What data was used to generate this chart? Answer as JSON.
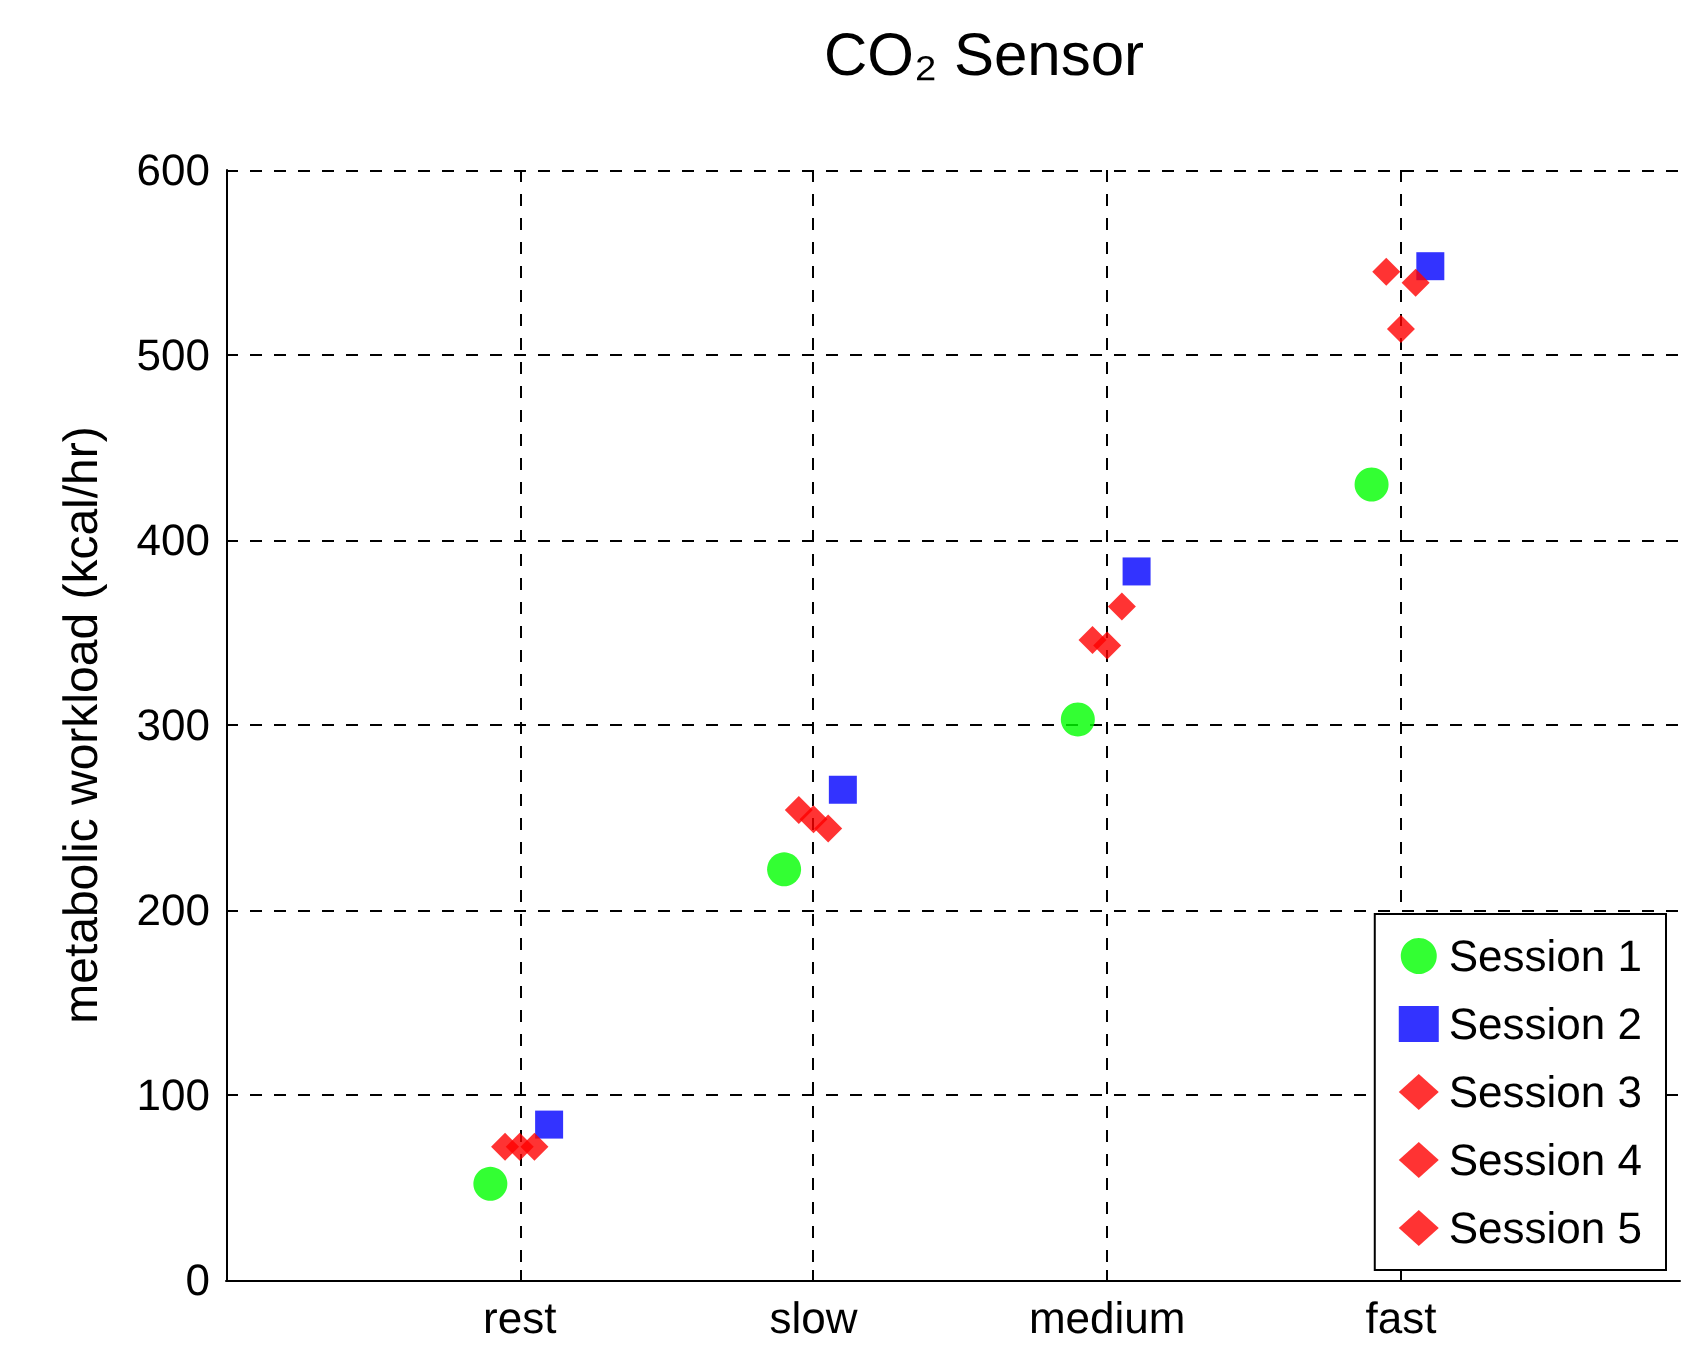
{
  "chart_data": {
    "type": "scatter",
    "title": "CO₂ Sensor",
    "ylabel": "metabolic workload (kcal/hr)",
    "categories": [
      "rest",
      "slow",
      "medium",
      "fast"
    ],
    "ylim": [
      0,
      600
    ],
    "yticks": [
      0,
      100,
      200,
      300,
      400,
      500,
      600
    ],
    "grid": true,
    "legend": "bottom right",
    "series": [
      {
        "name": "Session 1",
        "color": "#00ff00",
        "marker": "circle",
        "values": [
          52,
          222,
          303,
          430
        ]
      },
      {
        "name": "Session 2",
        "color": "#0000ff",
        "marker": "square",
        "values": [
          84,
          265,
          383,
          548
        ]
      },
      {
        "name": "Session 3",
        "color": "#ff0000",
        "marker": "diamond",
        "values": [
          72,
          254,
          346,
          545
        ]
      },
      {
        "name": "Session 4",
        "color": "#ff0000",
        "marker": "diamond",
        "values": [
          72,
          249,
          343,
          514
        ]
      },
      {
        "name": "Session 5",
        "color": "#ff0000",
        "marker": "diamond",
        "values": [
          72,
          244,
          364,
          539
        ]
      }
    ]
  }
}
